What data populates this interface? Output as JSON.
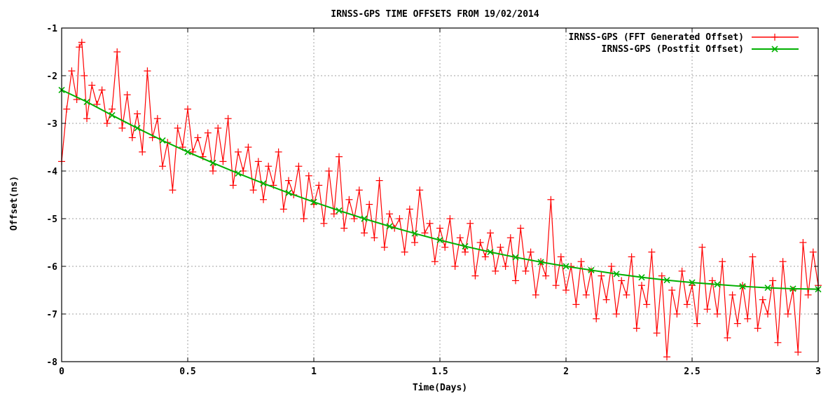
{
  "chart_data": {
    "type": "line",
    "title": "IRNSS-GPS TIME OFFSETS FROM 19/02/2014",
    "xlabel": "Time(Days)",
    "ylabel": "Offset(ns)",
    "xlim": [
      0,
      3
    ],
    "ylim": [
      -8,
      -1
    ],
    "xticks": [
      0,
      0.5,
      1,
      1.5,
      2,
      2.5,
      3
    ],
    "xtick_labels": [
      "0",
      "0.5",
      "1",
      "1.5",
      "2",
      "2.5",
      "3"
    ],
    "yticks": [
      -1,
      -2,
      -3,
      -4,
      -5,
      -6,
      -7,
      -8
    ],
    "ytick_labels": [
      "-1",
      "-2",
      "-3",
      "-4",
      "-5",
      "-6",
      "-7",
      "-8"
    ],
    "grid": true,
    "legend_position": "top-right",
    "series": [
      {
        "name": "IRNSS-GPS (FFT Generated Offset)",
        "color": "#ff0000",
        "marker": "plus",
        "x": [
          0,
          0.02,
          0.04,
          0.06,
          0.07,
          0.08,
          0.09,
          0.1,
          0.12,
          0.14,
          0.16,
          0.18,
          0.2,
          0.22,
          0.24,
          0.26,
          0.28,
          0.3,
          0.32,
          0.34,
          0.36,
          0.38,
          0.4,
          0.42,
          0.44,
          0.46,
          0.48,
          0.5,
          0.52,
          0.54,
          0.56,
          0.58,
          0.6,
          0.62,
          0.64,
          0.66,
          0.68,
          0.7,
          0.72,
          0.74,
          0.76,
          0.78,
          0.8,
          0.82,
          0.84,
          0.86,
          0.88,
          0.9,
          0.92,
          0.94,
          0.96,
          0.98,
          1.0,
          1.02,
          1.04,
          1.06,
          1.08,
          1.1,
          1.12,
          1.14,
          1.16,
          1.18,
          1.2,
          1.22,
          1.24,
          1.26,
          1.28,
          1.3,
          1.32,
          1.34,
          1.36,
          1.38,
          1.4,
          1.42,
          1.44,
          1.46,
          1.48,
          1.5,
          1.52,
          1.54,
          1.56,
          1.58,
          1.6,
          1.62,
          1.64,
          1.66,
          1.68,
          1.7,
          1.72,
          1.74,
          1.76,
          1.78,
          1.8,
          1.82,
          1.84,
          1.86,
          1.88,
          1.9,
          1.92,
          1.94,
          1.96,
          1.98,
          2.0,
          2.02,
          2.04,
          2.06,
          2.08,
          2.1,
          2.12,
          2.14,
          2.16,
          2.18,
          2.2,
          2.22,
          2.24,
          2.26,
          2.28,
          2.3,
          2.32,
          2.34,
          2.36,
          2.38,
          2.4,
          2.42,
          2.44,
          2.46,
          2.48,
          2.5,
          2.52,
          2.54,
          2.56,
          2.58,
          2.6,
          2.62,
          2.64,
          2.66,
          2.68,
          2.7,
          2.72,
          2.74,
          2.76,
          2.78,
          2.8,
          2.82,
          2.84,
          2.86,
          2.88,
          2.9,
          2.92,
          2.94,
          2.96,
          2.98,
          3.0
        ],
        "values": [
          -3.8,
          -2.7,
          -1.9,
          -2.5,
          -1.4,
          -1.3,
          -2.0,
          -2.9,
          -2.2,
          -2.6,
          -2.3,
          -3.0,
          -2.7,
          -1.5,
          -3.1,
          -2.4,
          -3.3,
          -2.8,
          -3.6,
          -1.9,
          -3.3,
          -2.9,
          -3.9,
          -3.4,
          -4.4,
          -3.1,
          -3.5,
          -2.7,
          -3.6,
          -3.3,
          -3.7,
          -3.2,
          -4.0,
          -3.1,
          -3.8,
          -2.9,
          -4.3,
          -3.6,
          -4.0,
          -3.5,
          -4.4,
          -3.8,
          -4.6,
          -3.9,
          -4.3,
          -3.6,
          -4.8,
          -4.2,
          -4.5,
          -3.9,
          -5.0,
          -4.1,
          -4.7,
          -4.3,
          -5.1,
          -4.0,
          -4.9,
          -3.7,
          -5.2,
          -4.6,
          -5.0,
          -4.4,
          -5.3,
          -4.7,
          -5.4,
          -4.2,
          -5.6,
          -4.9,
          -5.2,
          -5.0,
          -5.7,
          -4.8,
          -5.5,
          -4.4,
          -5.3,
          -5.1,
          -5.9,
          -5.2,
          -5.6,
          -5.0,
          -6.0,
          -5.4,
          -5.7,
          -5.1,
          -6.2,
          -5.5,
          -5.8,
          -5.3,
          -6.1,
          -5.6,
          -6.0,
          -5.4,
          -6.3,
          -5.2,
          -6.1,
          -5.7,
          -6.6,
          -5.9,
          -6.2,
          -4.6,
          -6.4,
          -5.8,
          -6.5,
          -6.0,
          -6.8,
          -5.9,
          -6.6,
          -6.1,
          -7.1,
          -6.2,
          -6.7,
          -6.0,
          -7.0,
          -6.3,
          -6.6,
          -5.8,
          -7.3,
          -6.4,
          -6.8,
          -5.7,
          -7.4,
          -6.2,
          -7.9,
          -6.5,
          -7.0,
          -6.1,
          -6.8,
          -6.4,
          -7.2,
          -5.6,
          -6.9,
          -6.3,
          -7.0,
          -5.9,
          -7.5,
          -6.6,
          -7.2,
          -6.4,
          -7.1,
          -5.8,
          -7.3,
          -6.7,
          -7.0,
          -6.3,
          -7.6,
          -5.9,
          -7.0,
          -6.5,
          -7.8,
          -5.5,
          -6.6,
          -5.7,
          -6.4
        ]
      },
      {
        "name": "IRNSS-GPS (Postfit Offset)",
        "color": "#00b000",
        "marker": "cross",
        "x": [
          0,
          0.1,
          0.2,
          0.3,
          0.4,
          0.5,
          0.6,
          0.7,
          0.8,
          0.9,
          1.0,
          1.1,
          1.2,
          1.3,
          1.4,
          1.5,
          1.6,
          1.7,
          1.8,
          1.9,
          2.0,
          2.1,
          2.2,
          2.3,
          2.4,
          2.5,
          2.6,
          2.7,
          2.8,
          2.9,
          3.0
        ],
        "values": [
          -2.3,
          -2.55,
          -2.83,
          -3.1,
          -3.36,
          -3.6,
          -3.83,
          -4.05,
          -4.26,
          -4.46,
          -4.65,
          -4.83,
          -5.0,
          -5.16,
          -5.31,
          -5.45,
          -5.58,
          -5.7,
          -5.81,
          -5.91,
          -6.0,
          -6.08,
          -6.16,
          -6.23,
          -6.29,
          -6.34,
          -6.38,
          -6.42,
          -6.45,
          -6.47,
          -6.48
        ]
      }
    ]
  }
}
